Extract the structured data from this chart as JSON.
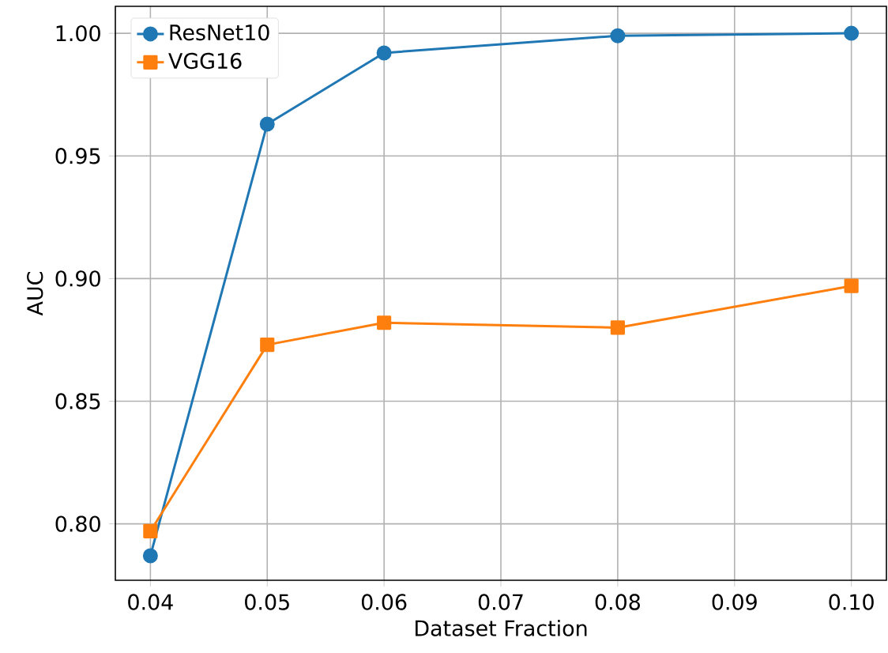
{
  "chart_data": {
    "type": "line",
    "xlabel": "Dataset Fraction",
    "ylabel": "AUC",
    "x": [
      0.04,
      0.05,
      0.06,
      0.08,
      0.1
    ],
    "series": [
      {
        "name": "ResNet10",
        "color": "#1f77b4",
        "marker": "circle",
        "values": [
          0.787,
          0.963,
          0.992,
          0.999,
          1.0
        ]
      },
      {
        "name": "VGG16",
        "color": "#ff7f0e",
        "marker": "square",
        "values": [
          0.797,
          0.873,
          0.882,
          0.88,
          0.897
        ]
      }
    ],
    "xlim": [
      0.037,
      0.103
    ],
    "ylim": [
      0.777,
      1.011
    ],
    "xticks": [
      {
        "value": 0.04,
        "label": "0.04"
      },
      {
        "value": 0.05,
        "label": "0.05"
      },
      {
        "value": 0.06,
        "label": "0.06"
      },
      {
        "value": 0.07,
        "label": "0.07"
      },
      {
        "value": 0.08,
        "label": "0.08"
      },
      {
        "value": 0.09,
        "label": "0.09"
      },
      {
        "value": 0.1,
        "label": "0.10"
      }
    ],
    "yticks": [
      {
        "value": 0.8,
        "label": "0.80"
      },
      {
        "value": 0.85,
        "label": "0.85"
      },
      {
        "value": 0.9,
        "label": "0.90"
      },
      {
        "value": 0.95,
        "label": "0.95"
      },
      {
        "value": 1.0,
        "label": "1.00"
      }
    ],
    "grid": true,
    "legend": "top left",
    "line_style": "solid"
  }
}
